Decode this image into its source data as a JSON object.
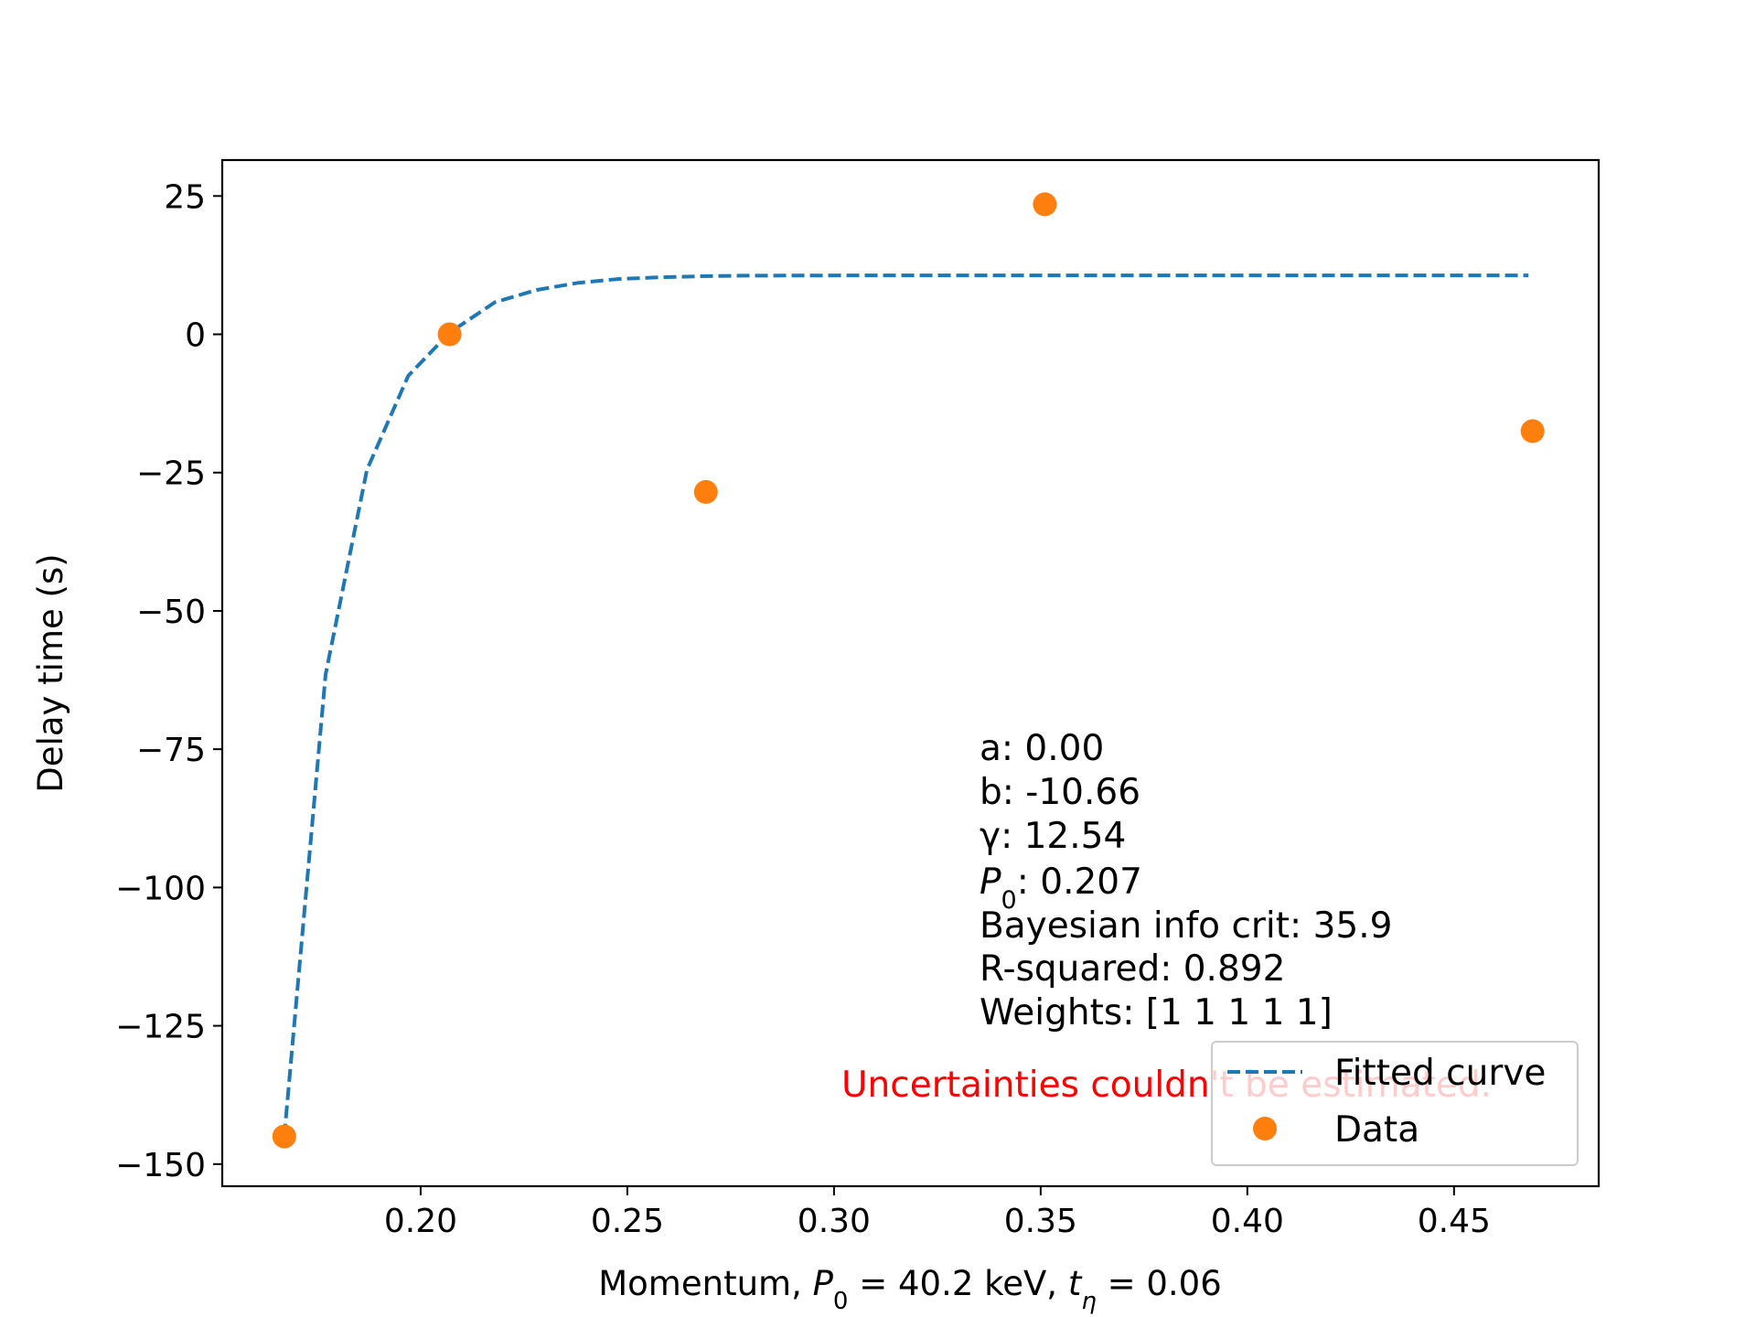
{
  "chart_data": {
    "type": "scatter",
    "xlabel_parts": [
      "Momentum, ",
      "P",
      "0",
      " = 40.2 keV, ",
      "t",
      "η",
      " = 0.06"
    ],
    "ylabel": "Delay time (s)",
    "xlim": [
      0.152,
      0.485
    ],
    "ylim": [
      -154,
      31.5
    ],
    "xticks": [
      0.2,
      0.25,
      0.3,
      0.35,
      0.4,
      0.45
    ],
    "xtick_labels": [
      "0.20",
      "0.25",
      "0.30",
      "0.35",
      "0.40",
      "0.45"
    ],
    "yticks": [
      25,
      0,
      -25,
      -50,
      -75,
      -100,
      -125,
      -150
    ],
    "ytick_labels": [
      "25",
      "0",
      "−25",
      "−50",
      "−75",
      "−100",
      "−125",
      "−150"
    ],
    "grid": false,
    "legend_position": "lower right",
    "series": [
      {
        "name": "Fitted curve",
        "kind": "line",
        "style": "dashed",
        "color": "#1f77b4",
        "x": [
          0.167,
          0.177,
          0.187,
          0.197,
          0.207,
          0.218,
          0.228,
          0.238,
          0.248,
          0.258,
          0.268,
          0.278,
          0.288,
          0.298,
          0.308,
          0.33,
          0.36,
          0.4,
          0.44,
          0.468
        ],
        "y": [
          -145,
          -61.5,
          -24.5,
          -7.5,
          0.3,
          5.8,
          8.0,
          9.3,
          10.0,
          10.3,
          10.5,
          10.6,
          10.62,
          10.64,
          10.65,
          10.66,
          10.66,
          10.66,
          10.66,
          10.66
        ]
      },
      {
        "name": "Data",
        "kind": "scatter",
        "color": "#ff7f0e",
        "x": [
          0.167,
          0.207,
          0.269,
          0.351,
          0.469
        ],
        "y": [
          -145,
          0,
          -28.5,
          23.5,
          -17.5
        ]
      }
    ],
    "annotations": [
      {
        "text": "a: 0.00"
      },
      {
        "text": "b: -10.66"
      },
      {
        "text": "γ: 12.54"
      },
      {
        "text": "P0: 0.207",
        "parts": [
          "P",
          "0",
          ": 0.207"
        ]
      },
      {
        "text": "Bayesian info crit: 35.9"
      },
      {
        "text": "R-squared: 0.892"
      },
      {
        "text": "Weights: [1 1 1 1 1]"
      }
    ],
    "warning": {
      "text": "Uncertainties couldn't be estimated.",
      "color": "#ff0000"
    }
  }
}
